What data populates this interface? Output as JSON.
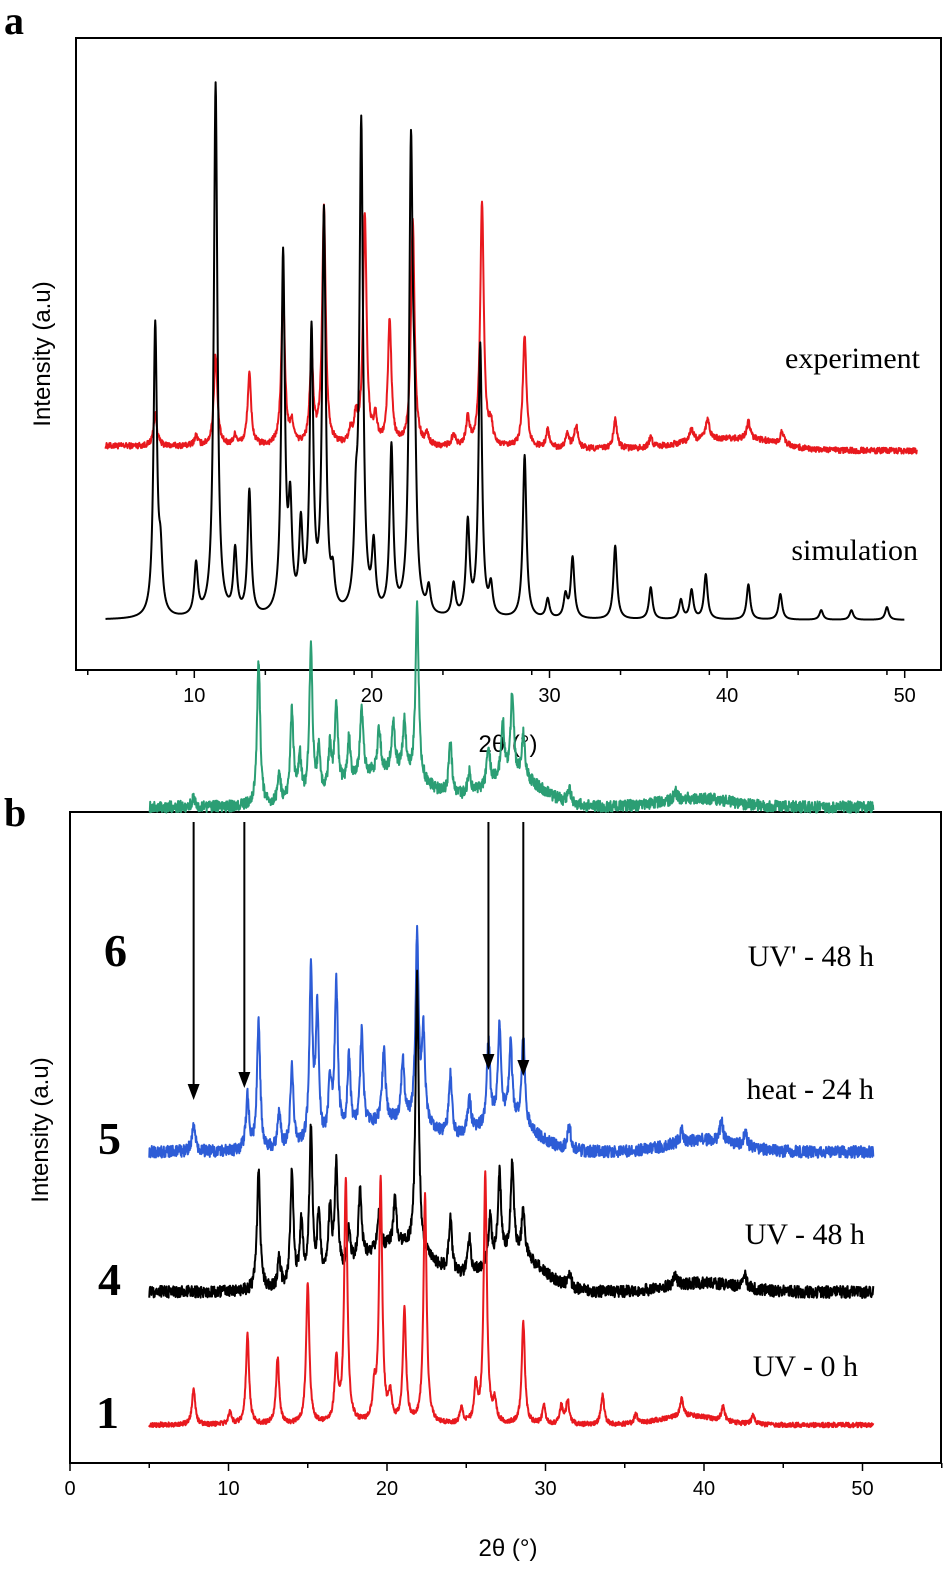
{
  "chart_data": [
    {
      "type": "line",
      "panel": "a",
      "xlabel": "2θ (°)",
      "ylabel": "Intensity (a.u)",
      "xlim": [
        4,
        51
      ],
      "xticks": [
        10,
        20,
        30,
        40,
        50
      ],
      "series": [
        {
          "name": "experiment",
          "color": "#e8191e",
          "offset": 1.0,
          "range": [
            5,
            50.7
          ],
          "baseline_drift": -0.02,
          "noise": 0.012,
          "peaks": [
            [
              7.8,
              0.13
            ],
            [
              10.1,
              0.04
            ],
            [
              11.2,
              0.37
            ],
            [
              12.3,
              0.04
            ],
            [
              13.1,
              0.29
            ],
            [
              15.0,
              0.62
            ],
            [
              15.5,
              0.08
            ],
            [
              16.6,
              0.35
            ],
            [
              17.3,
              0.96
            ],
            [
              18.8,
              0.05
            ],
            [
              19.1,
              0.1
            ],
            [
              19.6,
              0.94
            ],
            [
              20.2,
              0.1
            ],
            [
              21.0,
              0.51
            ],
            [
              22.3,
              0.93
            ],
            [
              23.1,
              0.04
            ],
            [
              24.6,
              0.05
            ],
            [
              25.4,
              0.11
            ],
            [
              26.2,
              1.0
            ],
            [
              26.7,
              0.08
            ],
            [
              28.6,
              0.46
            ],
            [
              29.9,
              0.07
            ],
            [
              31.0,
              0.06
            ],
            [
              31.5,
              0.09
            ],
            [
              33.7,
              0.12
            ],
            [
              35.7,
              0.04
            ],
            [
              38.0,
              0.05
            ],
            [
              38.9,
              0.08
            ],
            [
              41.2,
              0.07
            ],
            [
              43.1,
              0.05
            ]
          ],
          "bumps": [
            [
              39.0,
              0.04,
              2.5
            ],
            [
              42.0,
              0.03,
              2.0
            ]
          ]
        },
        {
          "name": "simulation",
          "color": "#000000",
          "offset": 0.0,
          "range": [
            5,
            50
          ],
          "baseline_drift": 0.0,
          "noise": 0.0,
          "peaks": [
            [
              7.8,
              0.91
            ],
            [
              8.1,
              0.16
            ],
            [
              10.1,
              0.16
            ],
            [
              11.2,
              1.67
            ],
            [
              12.3,
              0.2
            ],
            [
              13.1,
              0.39
            ],
            [
              15.0,
              1.12
            ],
            [
              15.4,
              0.31
            ],
            [
              16.0,
              0.26
            ],
            [
              16.6,
              0.87
            ],
            [
              17.3,
              1.25
            ],
            [
              17.8,
              0.1
            ],
            [
              19.1,
              0.26
            ],
            [
              19.4,
              1.52
            ],
            [
              20.1,
              0.2
            ],
            [
              21.1,
              0.52
            ],
            [
              22.2,
              1.4
            ],
            [
              22.4,
              0.44
            ],
            [
              23.2,
              0.08
            ],
            [
              24.6,
              0.1
            ],
            [
              25.4,
              0.29
            ],
            [
              26.1,
              0.85
            ],
            [
              26.7,
              0.09
            ],
            [
              28.6,
              0.51
            ],
            [
              29.9,
              0.06
            ],
            [
              30.9,
              0.07
            ],
            [
              31.3,
              0.19
            ],
            [
              33.7,
              0.23
            ],
            [
              35.7,
              0.1
            ],
            [
              37.4,
              0.06
            ],
            [
              38.0,
              0.09
            ],
            [
              38.8,
              0.14
            ],
            [
              41.2,
              0.11
            ],
            [
              43.0,
              0.08
            ],
            [
              45.3,
              0.03
            ],
            [
              47.0,
              0.03
            ],
            [
              49.0,
              0.04
            ]
          ],
          "bumps": []
        }
      ],
      "series_labels": [
        "experiment",
        "simulation"
      ]
    },
    {
      "type": "line",
      "panel": "b",
      "xlabel": "2θ (°)",
      "ylabel": "Intensity (a.u)",
      "xlim": [
        0,
        55
      ],
      "xticks": [
        0,
        10,
        20,
        30,
        40,
        50
      ],
      "series": [
        {
          "name": "UV' - 48 h",
          "sample": "6",
          "color": "#2b9e74",
          "offset": 3.0,
          "range": [
            5,
            50.7
          ],
          "baseline_drift": 0.0,
          "noise": 0.02,
          "peaks": [
            [
              7.8,
              0.03
            ],
            [
              11.9,
              0.5
            ],
            [
              13.2,
              0.1
            ],
            [
              14.0,
              0.32
            ],
            [
              14.5,
              0.15
            ],
            [
              15.2,
              0.52
            ],
            [
              15.7,
              0.15
            ],
            [
              16.4,
              0.15
            ],
            [
              16.8,
              0.29
            ],
            [
              17.6,
              0.15
            ],
            [
              18.4,
              0.24
            ],
            [
              19.5,
              0.15
            ],
            [
              20.4,
              0.17
            ],
            [
              21.1,
              0.18
            ],
            [
              21.9,
              0.6
            ],
            [
              24.0,
              0.18
            ],
            [
              25.2,
              0.08
            ],
            [
              26.4,
              0.14
            ],
            [
              27.3,
              0.2
            ],
            [
              27.9,
              0.29
            ],
            [
              28.6,
              0.15
            ],
            [
              31.5,
              0.05
            ],
            [
              38.2,
              0.03
            ]
          ],
          "bumps": [
            [
              20.0,
              0.12,
              3.5
            ],
            [
              28.0,
              0.1,
              2.5
            ],
            [
              39.5,
              0.03,
              3.0
            ]
          ]
        },
        {
          "name": "heat - 24 h",
          "sample": "5",
          "color": "#2d5cd6",
          "offset": 2.0,
          "range": [
            5,
            50.7
          ],
          "baseline_drift": 0.0,
          "noise": 0.02,
          "peaks": [
            [
              7.8,
              0.1
            ],
            [
              11.2,
              0.18
            ],
            [
              11.9,
              0.43
            ],
            [
              13.2,
              0.12
            ],
            [
              14.0,
              0.28
            ],
            [
              15.2,
              0.57
            ],
            [
              15.6,
              0.43
            ],
            [
              16.4,
              0.18
            ],
            [
              16.8,
              0.52
            ],
            [
              17.6,
              0.25
            ],
            [
              18.4,
              0.32
            ],
            [
              19.8,
              0.24
            ],
            [
              21.0,
              0.2
            ],
            [
              21.9,
              0.62
            ],
            [
              22.3,
              0.3
            ],
            [
              24.0,
              0.2
            ],
            [
              25.2,
              0.12
            ],
            [
              26.4,
              0.28
            ],
            [
              27.1,
              0.32
            ],
            [
              27.8,
              0.25
            ],
            [
              28.6,
              0.3
            ],
            [
              31.5,
              0.08
            ],
            [
              38.6,
              0.04
            ],
            [
              41.1,
              0.07
            ],
            [
              42.6,
              0.05
            ]
          ],
          "bumps": [
            [
              20.5,
              0.1,
              3.5
            ],
            [
              27.5,
              0.1,
              2.5
            ],
            [
              40.0,
              0.04,
              3.0
            ]
          ]
        },
        {
          "name": "UV - 48 h",
          "sample": "4",
          "color": "#000000",
          "offset": 1.0,
          "range": [
            5,
            50.7
          ],
          "baseline_drift": 0.0,
          "noise": 0.02,
          "peaks": [
            [
              11.9,
              0.4
            ],
            [
              13.2,
              0.1
            ],
            [
              14.0,
              0.38
            ],
            [
              14.6,
              0.2
            ],
            [
              15.2,
              0.51
            ],
            [
              15.7,
              0.22
            ],
            [
              16.4,
              0.22
            ],
            [
              16.8,
              0.36
            ],
            [
              17.6,
              0.12
            ],
            [
              18.3,
              0.23
            ],
            [
              19.5,
              0.12
            ],
            [
              20.5,
              0.15
            ],
            [
              21.9,
              0.92
            ],
            [
              24.0,
              0.18
            ],
            [
              25.2,
              0.12
            ],
            [
              26.5,
              0.15
            ],
            [
              27.1,
              0.28
            ],
            [
              27.9,
              0.3
            ],
            [
              28.6,
              0.16
            ],
            [
              31.5,
              0.05
            ],
            [
              38.2,
              0.04
            ],
            [
              42.6,
              0.04
            ]
          ],
          "bumps": [
            [
              20.5,
              0.15,
              3.5
            ],
            [
              28.0,
              0.12,
              2.5
            ],
            [
              40.0,
              0.03,
              3.0
            ]
          ]
        },
        {
          "name": "UV - 0 h",
          "sample": "1",
          "color": "#e8191e",
          "offset": 0.0,
          "range": [
            5,
            50.7
          ],
          "baseline_drift": 0.0,
          "noise": 0.008,
          "peaks": [
            [
              7.8,
              0.12
            ],
            [
              10.1,
              0.04
            ],
            [
              11.2,
              0.3
            ],
            [
              13.1,
              0.22
            ],
            [
              15.0,
              0.47
            ],
            [
              16.8,
              0.21
            ],
            [
              17.4,
              0.81
            ],
            [
              19.2,
              0.1
            ],
            [
              19.6,
              0.81
            ],
            [
              20.2,
              0.09
            ],
            [
              21.1,
              0.38
            ],
            [
              22.4,
              0.76
            ],
            [
              24.7,
              0.05
            ],
            [
              25.6,
              0.12
            ],
            [
              26.2,
              0.83
            ],
            [
              26.8,
              0.07
            ],
            [
              28.6,
              0.34
            ],
            [
              29.9,
              0.06
            ],
            [
              31.0,
              0.06
            ],
            [
              31.4,
              0.08
            ],
            [
              33.6,
              0.1
            ],
            [
              35.7,
              0.03
            ],
            [
              38.6,
              0.06
            ],
            [
              41.2,
              0.05
            ],
            [
              43.1,
              0.03
            ]
          ],
          "bumps": [
            [
              39.0,
              0.03,
              2.5
            ]
          ]
        }
      ],
      "arrows_at": [
        7.8,
        11.0,
        26.4,
        28.6
      ]
    }
  ],
  "panel_letters": {
    "a": "a",
    "b": "b"
  }
}
